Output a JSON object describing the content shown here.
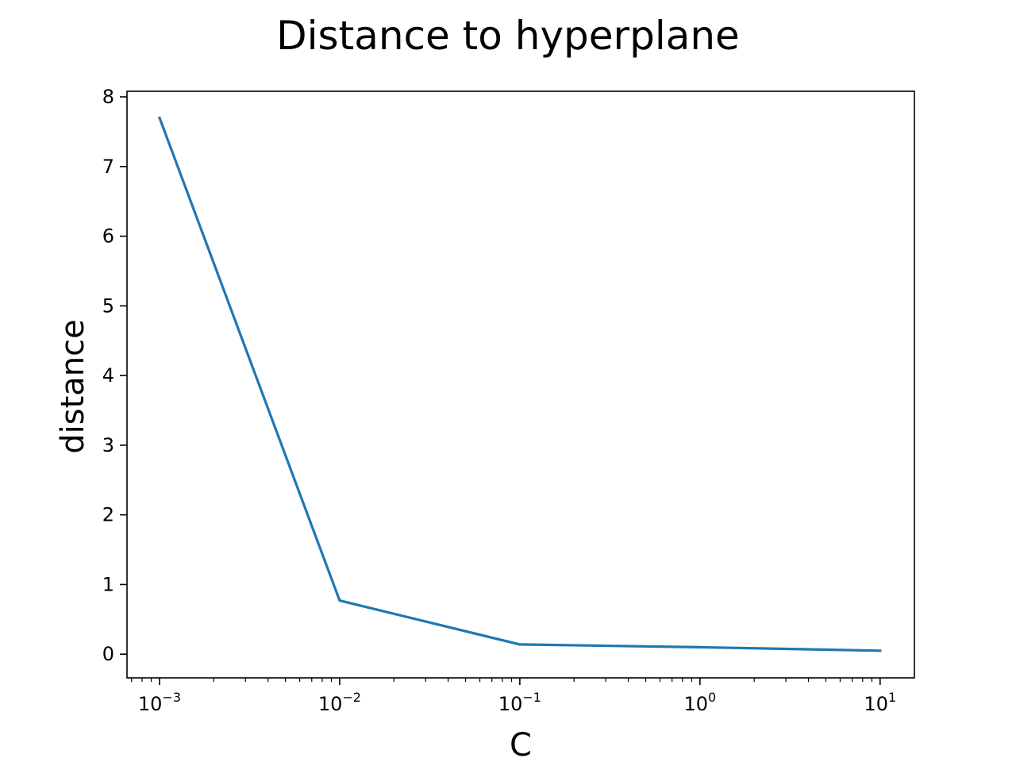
{
  "chart_data": {
    "type": "line",
    "title": "Distance to hyperplane",
    "xlabel": "C",
    "ylabel": "distance",
    "x_scale": "log",
    "x": [
      0.001,
      0.01,
      0.1,
      1,
      10
    ],
    "series": [
      {
        "values": [
          7.7,
          0.77,
          0.14,
          0.1,
          0.05
        ],
        "color": "#1f77b4"
      }
    ],
    "xlim": [
      0.00066,
      15.5
    ],
    "ylim": [
      -0.34,
      8.08
    ],
    "x_ticks": [
      {
        "base": "10",
        "exp": "−3",
        "value": 0.001
      },
      {
        "base": "10",
        "exp": "−2",
        "value": 0.01
      },
      {
        "base": "10",
        "exp": "−1",
        "value": 0.1
      },
      {
        "base": "10",
        "exp": "0",
        "value": 1
      },
      {
        "base": "10",
        "exp": "1",
        "value": 10
      }
    ],
    "y_ticks": [
      {
        "label": "0",
        "value": 0
      },
      {
        "label": "1",
        "value": 1
      },
      {
        "label": "2",
        "value": 2
      },
      {
        "label": "3",
        "value": 3
      },
      {
        "label": "4",
        "value": 4
      },
      {
        "label": "5",
        "value": 5
      },
      {
        "label": "6",
        "value": 6
      },
      {
        "label": "7",
        "value": 7
      },
      {
        "label": "8",
        "value": 8
      }
    ],
    "grid": false,
    "legend": "none"
  }
}
